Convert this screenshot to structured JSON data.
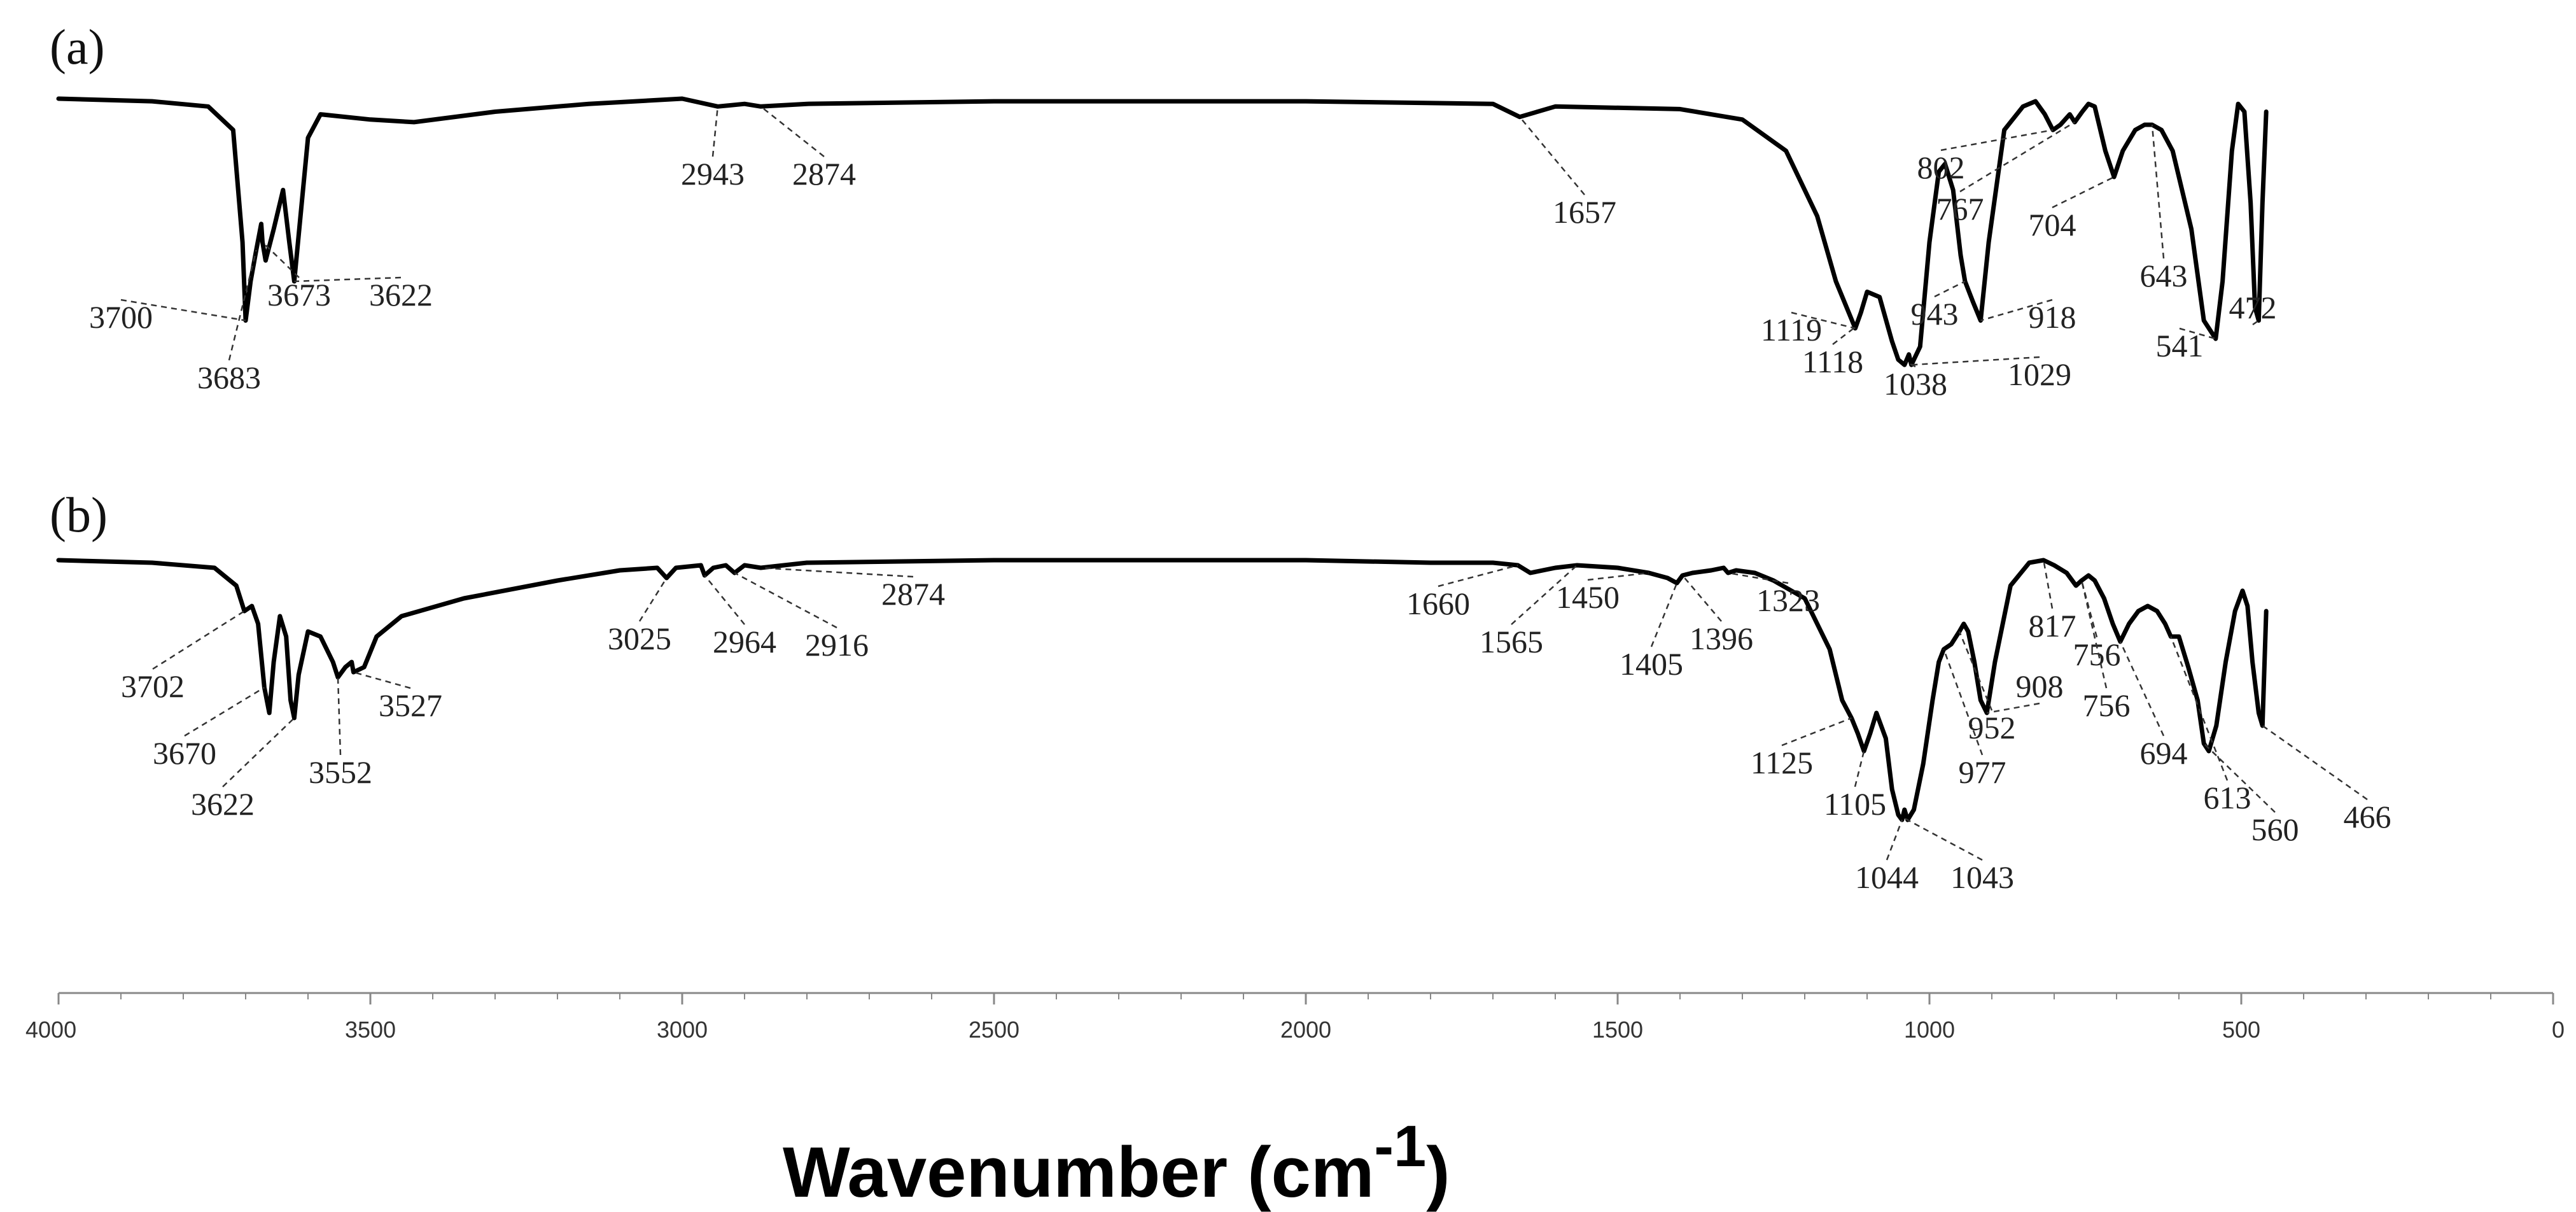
{
  "chart_data": {
    "type": "line",
    "title": "",
    "xlabel": "Wavenumber (cm",
    "xlabel_superscript": "-1",
    "xlabel_close": ")",
    "ylabel": "",
    "xlim": [
      4000,
      0
    ],
    "x_reversed": true,
    "grid": false,
    "x_ticks": [
      "4000",
      "3500",
      "3000",
      "2500",
      "2000",
      "1500",
      "1000",
      "500",
      "0"
    ],
    "series": [
      {
        "name": "(a)",
        "panel_label": "(a)",
        "baseline": 0.0,
        "points": [
          [
            4000,
            0.0
          ],
          [
            3850,
            0.01
          ],
          [
            3760,
            0.03
          ],
          [
            3720,
            0.12
          ],
          [
            3705,
            0.55
          ],
          [
            3700,
            0.85
          ],
          [
            3692,
            0.7
          ],
          [
            3683,
            0.58
          ],
          [
            3675,
            0.48
          ],
          [
            3673,
            0.55
          ],
          [
            3668,
            0.62
          ],
          [
            3655,
            0.5
          ],
          [
            3640,
            0.35
          ],
          [
            3630,
            0.55
          ],
          [
            3622,
            0.7
          ],
          [
            3612,
            0.45
          ],
          [
            3600,
            0.15
          ],
          [
            3580,
            0.06
          ],
          [
            3500,
            0.08
          ],
          [
            3430,
            0.09
          ],
          [
            3300,
            0.05
          ],
          [
            3150,
            0.02
          ],
          [
            3000,
            0.0
          ],
          [
            2943,
            0.03
          ],
          [
            2900,
            0.02
          ],
          [
            2874,
            0.03
          ],
          [
            2800,
            0.02
          ],
          [
            2500,
            0.01
          ],
          [
            2000,
            0.01
          ],
          [
            1700,
            0.02
          ],
          [
            1657,
            0.07
          ],
          [
            1600,
            0.03
          ],
          [
            1400,
            0.04
          ],
          [
            1300,
            0.08
          ],
          [
            1230,
            0.2
          ],
          [
            1180,
            0.45
          ],
          [
            1150,
            0.7
          ],
          [
            1119,
            0.88
          ],
          [
            1110,
            0.82
          ],
          [
            1100,
            0.74
          ],
          [
            1080,
            0.76
          ],
          [
            1060,
            0.93
          ],
          [
            1050,
            1.0
          ],
          [
            1040,
            1.02
          ],
          [
            1033,
            0.98
          ],
          [
            1029,
            1.02
          ],
          [
            1015,
            0.95
          ],
          [
            1000,
            0.55
          ],
          [
            985,
            0.28
          ],
          [
            975,
            0.25
          ],
          [
            962,
            0.35
          ],
          [
            950,
            0.6
          ],
          [
            943,
            0.7
          ],
          [
            930,
            0.78
          ],
          [
            918,
            0.85
          ],
          [
            905,
            0.55
          ],
          [
            880,
            0.12
          ],
          [
            850,
            0.03
          ],
          [
            830,
            0.01
          ],
          [
            815,
            0.06
          ],
          [
            802,
            0.12
          ],
          [
            790,
            0.1
          ],
          [
            775,
            0.06
          ],
          [
            767,
            0.09
          ],
          [
            755,
            0.05
          ],
          [
            745,
            0.02
          ],
          [
            735,
            0.03
          ],
          [
            718,
            0.2
          ],
          [
            704,
            0.3
          ],
          [
            690,
            0.2
          ],
          [
            670,
            0.12
          ],
          [
            655,
            0.1
          ],
          [
            643,
            0.1
          ],
          [
            628,
            0.12
          ],
          [
            610,
            0.2
          ],
          [
            580,
            0.5
          ],
          [
            560,
            0.85
          ],
          [
            541,
            0.92
          ],
          [
            530,
            0.7
          ],
          [
            515,
            0.2
          ],
          [
            505,
            0.02
          ],
          [
            495,
            0.05
          ],
          [
            485,
            0.4
          ],
          [
            478,
            0.8
          ],
          [
            472,
            0.85
          ],
          [
            466,
            0.4
          ],
          [
            460,
            0.05
          ]
        ],
        "annotations": [
          "3700",
          "3683",
          "3673",
          "3622",
          "2943",
          "2874",
          "1657",
          "1119",
          "1118",
          "1038",
          "1029",
          "943",
          "918",
          "802",
          "767",
          "704",
          "643",
          "541",
          "472"
        ]
      },
      {
        "name": "(b)",
        "panel_label": "(b)",
        "baseline": 0.0,
        "points": [
          [
            4000,
            0.0
          ],
          [
            3850,
            0.01
          ],
          [
            3750,
            0.03
          ],
          [
            3715,
            0.1
          ],
          [
            3702,
            0.2
          ],
          [
            3690,
            0.18
          ],
          [
            3680,
            0.25
          ],
          [
            3670,
            0.5
          ],
          [
            3662,
            0.6
          ],
          [
            3655,
            0.4
          ],
          [
            3645,
            0.22
          ],
          [
            3635,
            0.3
          ],
          [
            3628,
            0.55
          ],
          [
            3622,
            0.62
          ],
          [
            3615,
            0.45
          ],
          [
            3600,
            0.28
          ],
          [
            3580,
            0.3
          ],
          [
            3560,
            0.4
          ],
          [
            3552,
            0.46
          ],
          [
            3540,
            0.42
          ],
          [
            3530,
            0.4
          ],
          [
            3527,
            0.44
          ],
          [
            3510,
            0.42
          ],
          [
            3490,
            0.3
          ],
          [
            3450,
            0.22
          ],
          [
            3350,
            0.15
          ],
          [
            3200,
            0.08
          ],
          [
            3100,
            0.04
          ],
          [
            3040,
            0.03
          ],
          [
            3025,
            0.07
          ],
          [
            3010,
            0.03
          ],
          [
            2970,
            0.02
          ],
          [
            2964,
            0.06
          ],
          [
            2950,
            0.03
          ],
          [
            2930,
            0.02
          ],
          [
            2916,
            0.05
          ],
          [
            2900,
            0.02
          ],
          [
            2874,
            0.03
          ],
          [
            2800,
            0.01
          ],
          [
            2500,
            0.0
          ],
          [
            2000,
            0.0
          ],
          [
            1800,
            0.01
          ],
          [
            1700,
            0.01
          ],
          [
            1660,
            0.02
          ],
          [
            1640,
            0.05
          ],
          [
            1600,
            0.03
          ],
          [
            1565,
            0.02
          ],
          [
            1500,
            0.03
          ],
          [
            1450,
            0.05
          ],
          [
            1420,
            0.07
          ],
          [
            1405,
            0.09
          ],
          [
            1396,
            0.06
          ],
          [
            1380,
            0.05
          ],
          [
            1350,
            0.04
          ],
          [
            1330,
            0.03
          ],
          [
            1323,
            0.05
          ],
          [
            1310,
            0.04
          ],
          [
            1280,
            0.05
          ],
          [
            1250,
            0.08
          ],
          [
            1200,
            0.15
          ],
          [
            1160,
            0.35
          ],
          [
            1140,
            0.55
          ],
          [
            1125,
            0.62
          ],
          [
            1115,
            0.68
          ],
          [
            1105,
            0.75
          ],
          [
            1095,
            0.68
          ],
          [
            1085,
            0.6
          ],
          [
            1070,
            0.7
          ],
          [
            1060,
            0.9
          ],
          [
            1050,
            1.0
          ],
          [
            1044,
            1.02
          ],
          [
            1040,
            0.98
          ],
          [
            1035,
            1.02
          ],
          [
            1025,
            0.98
          ],
          [
            1010,
            0.8
          ],
          [
            995,
            0.55
          ],
          [
            985,
            0.4
          ],
          [
            977,
            0.35
          ],
          [
            965,
            0.33
          ],
          [
            952,
            0.28
          ],
          [
            945,
            0.25
          ],
          [
            938,
            0.28
          ],
          [
            928,
            0.4
          ],
          [
            918,
            0.55
          ],
          [
            908,
            0.6
          ],
          [
            895,
            0.4
          ],
          [
            870,
            0.1
          ],
          [
            840,
            0.01
          ],
          [
            817,
            0.0
          ],
          [
            800,
            0.02
          ],
          [
            780,
            0.05
          ],
          [
            765,
            0.1
          ],
          [
            756,
            0.08
          ],
          [
            745,
            0.06
          ],
          [
            735,
            0.08
          ],
          [
            720,
            0.15
          ],
          [
            706,
            0.25
          ],
          [
            694,
            0.32
          ],
          [
            680,
            0.25
          ],
          [
            665,
            0.2
          ],
          [
            650,
            0.18
          ],
          [
            635,
            0.2
          ],
          [
            622,
            0.25
          ],
          [
            613,
            0.3
          ],
          [
            600,
            0.3
          ],
          [
            585,
            0.42
          ],
          [
            570,
            0.55
          ],
          [
            560,
            0.72
          ],
          [
            552,
            0.75
          ],
          [
            540,
            0.65
          ],
          [
            525,
            0.4
          ],
          [
            510,
            0.2
          ],
          [
            498,
            0.12
          ],
          [
            490,
            0.18
          ],
          [
            482,
            0.4
          ],
          [
            472,
            0.6
          ],
          [
            466,
            0.65
          ],
          [
            460,
            0.2
          ]
        ],
        "annotations": [
          "3702",
          "3670",
          "3622",
          "3552",
          "3527",
          "3025",
          "2964",
          "2916",
          "2874",
          "1660",
          "1565",
          "1450",
          "1405",
          "1396",
          "1323",
          "1125",
          "1105",
          "1044",
          "1043",
          "977",
          "952",
          "908",
          "817",
          "756",
          "756",
          "694",
          "613",
          "560",
          "466"
        ]
      }
    ]
  }
}
